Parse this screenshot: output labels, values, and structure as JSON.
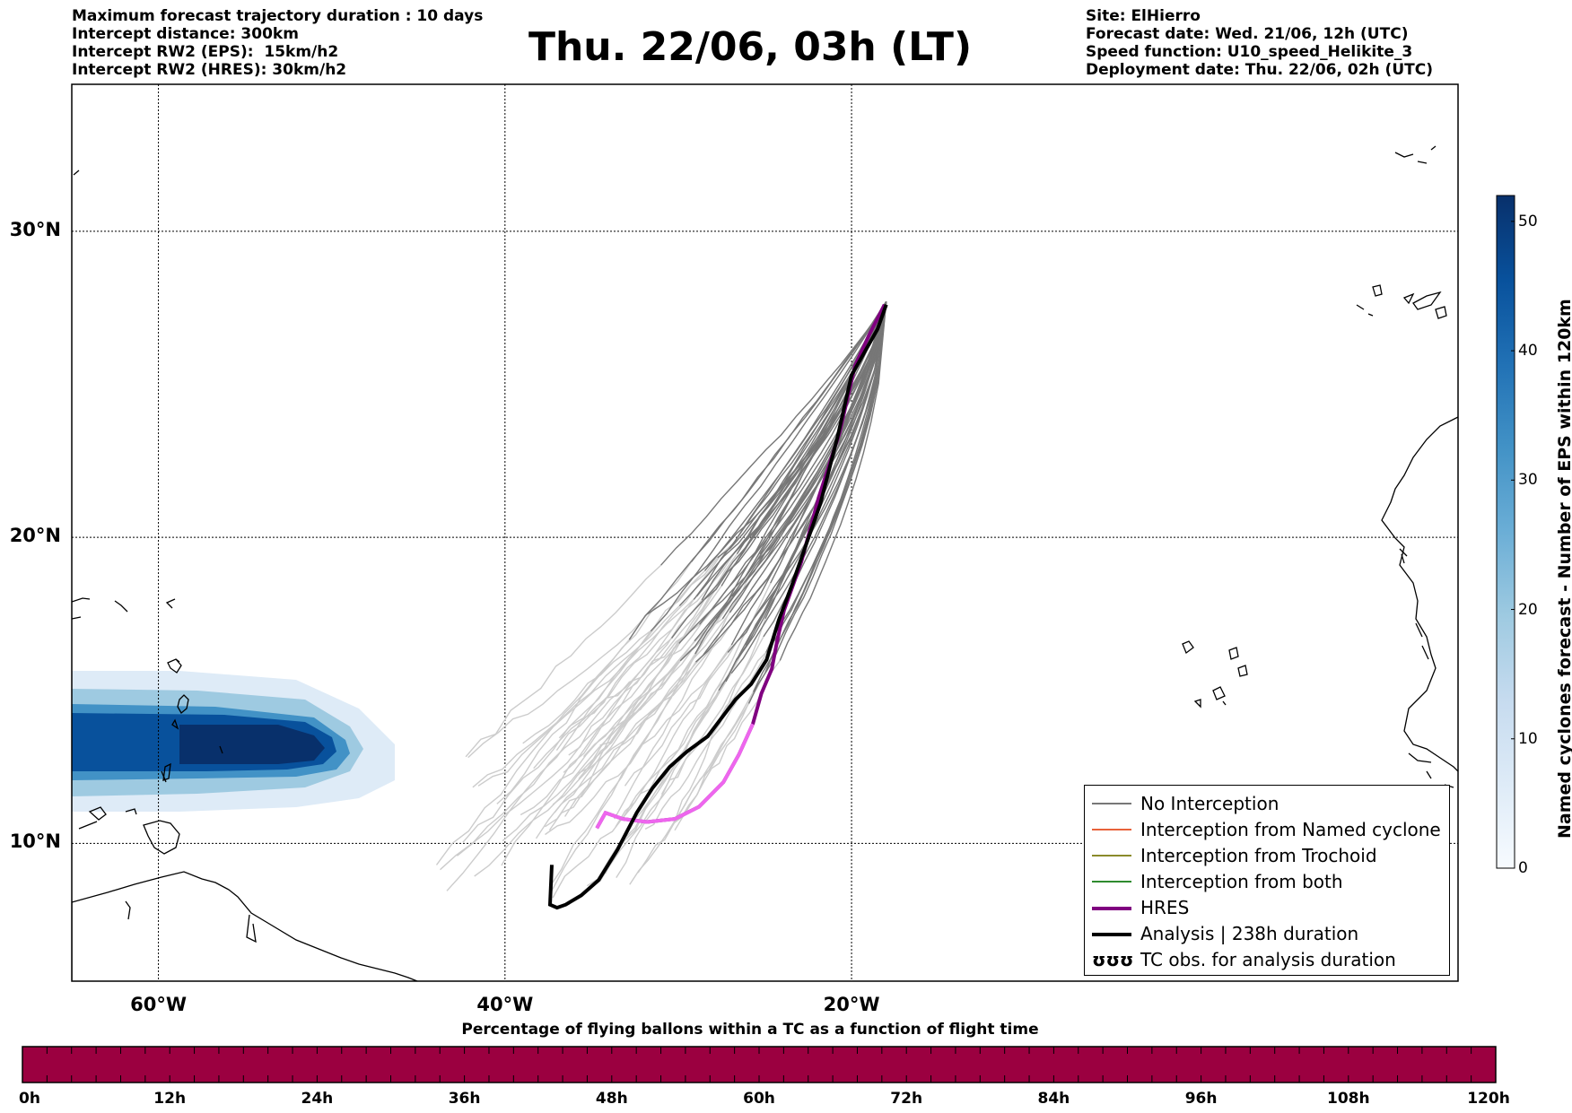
{
  "header": {
    "left_lines": [
      "Maximum forecast trajectory duration : 10 days",
      "Intercept distance: 300km",
      "Intercept RW2 (EPS):  15km/h2",
      "Intercept RW2 (HRES): 30km/h2"
    ],
    "title": "Thu. 22/06, 03h (LT)",
    "right_lines": [
      "Site: ElHierro",
      "Forecast date: Wed. 21/06, 12h (UTC)",
      "Speed function: U10_speed_Helikite_3",
      "Deployment date: Thu. 22/06, 02h (UTC)"
    ]
  },
  "map": {
    "lon_range": [
      -65,
      15
    ],
    "lat_range": [
      5.5,
      34.8
    ],
    "lat_ticks": [
      {
        "value": 30,
        "label": "30°N"
      },
      {
        "value": 20,
        "label": "20°N"
      },
      {
        "value": 10,
        "label": "10°N"
      }
    ],
    "lon_ticks": [
      {
        "value": -60,
        "label": "60°W"
      },
      {
        "value": -40,
        "label": "40°W"
      },
      {
        "value": -20,
        "label": "20°W"
      }
    ],
    "site": {
      "name": "ElHierro",
      "lon": -18.0,
      "lat": 27.7
    }
  },
  "colorbar": {
    "label": "Named cyclones forecast - Number of EPS within 120km",
    "ticks": [
      "0",
      "10",
      "20",
      "30",
      "40",
      "50"
    ],
    "min": 0,
    "max": 52,
    "colors": [
      "#f7fbff",
      "#deebf7",
      "#c6dbef",
      "#9ecae1",
      "#6baed6",
      "#4292c6",
      "#2171b5",
      "#08519c",
      "#08306b"
    ]
  },
  "legend": {
    "items": [
      {
        "label": "No Interception",
        "color": "#777777",
        "width": 2,
        "type": "line"
      },
      {
        "label": "Interception from Named cyclone",
        "color": "#e8623a",
        "width": 2,
        "type": "line"
      },
      {
        "label": "Interception from Trochoid",
        "color": "#8a8a2a",
        "width": 2,
        "type": "line"
      },
      {
        "label": "Interception from both",
        "color": "#2e8b2e",
        "width": 2,
        "type": "line"
      },
      {
        "label": "HRES",
        "color": "#800080",
        "width": 4,
        "type": "line"
      },
      {
        "label": "Analysis | 238h duration",
        "color": "#000000",
        "width": 4,
        "type": "line"
      },
      {
        "label": "TC obs. for analysis duration",
        "symbol": "ʊʊʊ",
        "type": "symbol"
      }
    ]
  },
  "bottom_bar": {
    "caption": "Percentage of flying ballons within a TC as a function of flight time",
    "color": "#9b0040",
    "hours": [
      "0h",
      "12h",
      "24h",
      "36h",
      "48h",
      "60h",
      "72h",
      "84h",
      "96h",
      "108h",
      "120h"
    ]
  },
  "tracks": {
    "hres": [
      [
        -18.1,
        27.6
      ],
      [
        -19.0,
        26.6
      ],
      [
        -19.8,
        25.6
      ],
      [
        -20.7,
        23.4
      ],
      [
        -21.9,
        21.3
      ],
      [
        -22.9,
        19.2
      ],
      [
        -23.9,
        17.6
      ],
      [
        -24.3,
        16.6
      ],
      [
        -24.6,
        15.7
      ],
      [
        -25.2,
        14.9
      ],
      [
        -25.7,
        13.9
      ],
      [
        -26.5,
        12.9
      ],
      [
        -27.4,
        12.0
      ],
      [
        -28.8,
        11.2
      ],
      [
        -30.2,
        10.8
      ],
      [
        -31.8,
        10.7
      ],
      [
        -33.2,
        10.8
      ],
      [
        -34.2,
        11.0
      ],
      [
        -34.7,
        10.5
      ]
    ],
    "hres_late": [
      [
        -25.7,
        13.9
      ],
      [
        -26.5,
        12.9
      ],
      [
        -27.4,
        12.0
      ],
      [
        -28.8,
        11.2
      ],
      [
        -30.2,
        10.8
      ],
      [
        -31.8,
        10.7
      ],
      [
        -33.2,
        10.8
      ],
      [
        -34.2,
        11.0
      ],
      [
        -34.7,
        10.5
      ]
    ],
    "analysis": [
      [
        -18.0,
        27.6
      ],
      [
        -18.5,
        26.8
      ],
      [
        -19.3,
        26.0
      ],
      [
        -20.0,
        25.3
      ],
      [
        -20.8,
        23.3
      ],
      [
        -21.8,
        21.1
      ],
      [
        -22.6,
        19.8
      ],
      [
        -23.4,
        18.5
      ],
      [
        -24.2,
        17.3
      ],
      [
        -24.9,
        16.0
      ],
      [
        -25.8,
        15.2
      ],
      [
        -26.7,
        14.7
      ],
      [
        -27.5,
        14.1
      ],
      [
        -28.3,
        13.5
      ],
      [
        -29.5,
        13.0
      ],
      [
        -30.5,
        12.5
      ],
      [
        -31.5,
        11.8
      ],
      [
        -32.4,
        11.0
      ],
      [
        -33.5,
        9.8
      ],
      [
        -34.6,
        8.8
      ],
      [
        -35.6,
        8.3
      ],
      [
        -36.5,
        8.0
      ],
      [
        -37.0,
        7.9
      ],
      [
        -37.4,
        8.0
      ],
      [
        -37.3,
        9.3
      ]
    ]
  }
}
